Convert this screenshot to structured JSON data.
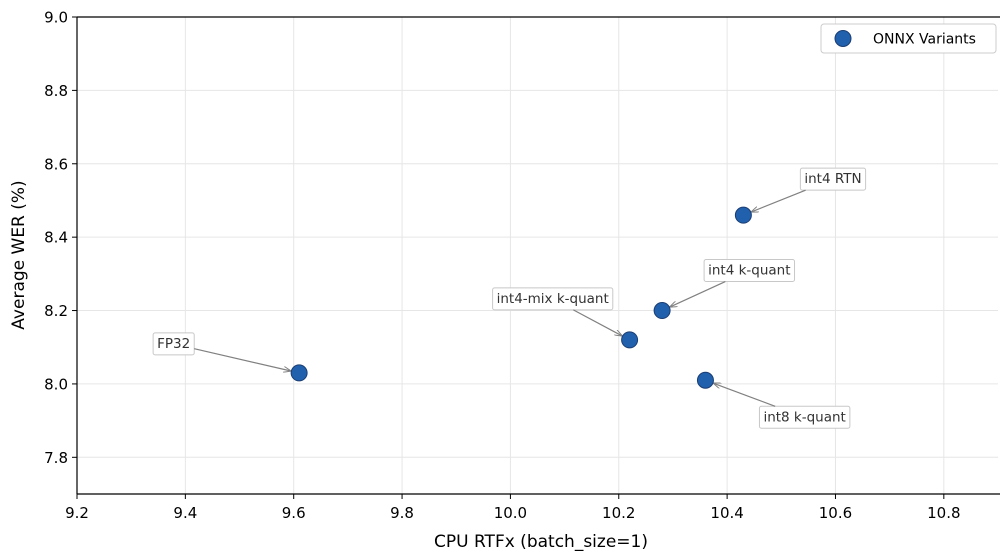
{
  "chart_data": {
    "type": "scatter",
    "xlabel": "CPU RTFx (batch_size=1)",
    "ylabel": "Average WER (%)",
    "xlim": [
      9.2,
      10.9
    ],
    "ylim": [
      7.7,
      9.0
    ],
    "xticks": [
      "9.2",
      "9.4",
      "9.6",
      "9.8",
      "10.0",
      "10.2",
      "10.4",
      "10.6",
      "10.8"
    ],
    "yticks": [
      "7.8",
      "8.0",
      "8.2",
      "8.4",
      "8.6",
      "8.8",
      "9.0"
    ],
    "grid": true,
    "legend": {
      "placement": "top-right",
      "entries": [
        "ONNX Variants"
      ]
    },
    "marker_color": "#2160ad",
    "marker_edge_color": "#1a3d73",
    "series": [
      {
        "name": "ONNX Variants",
        "points": [
          {
            "label": "FP32",
            "x": 9.61,
            "y": 8.03
          },
          {
            "label": "int4-mix k-quant",
            "x": 10.22,
            "y": 8.12
          },
          {
            "label": "int4 k-quant",
            "x": 10.28,
            "y": 8.2
          },
          {
            "label": "int8 k-quant",
            "x": 10.36,
            "y": 8.01
          },
          {
            "label": "int4 RTN",
            "x": 10.43,
            "y": 8.46
          }
        ]
      }
    ]
  }
}
